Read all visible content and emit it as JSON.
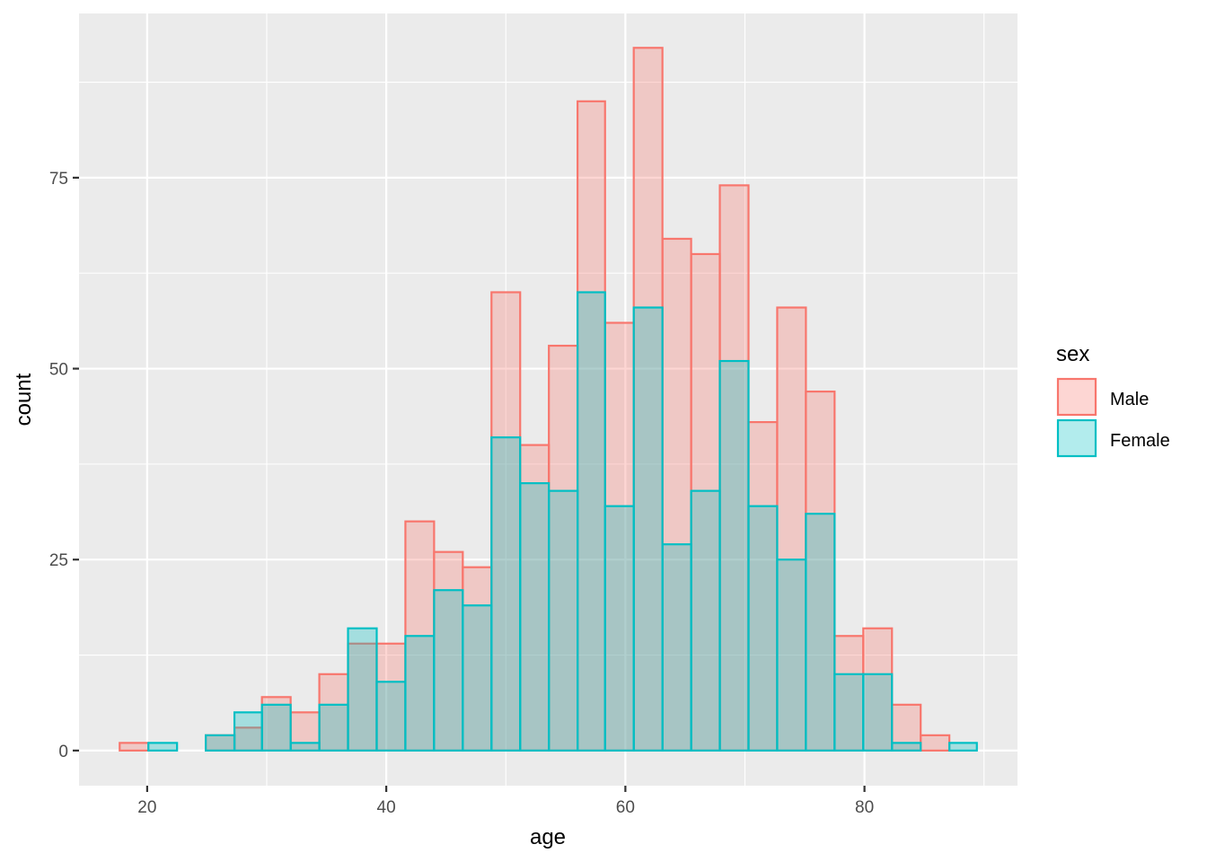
{
  "chart_data": {
    "type": "bar",
    "subtype": "overlapping-histogram",
    "xlabel": "age",
    "ylabel": "count",
    "xlim": [
      14.3,
      92.8
    ],
    "ylim": [
      -4.6,
      96.5
    ],
    "x_ticks": [
      20,
      40,
      60,
      80
    ],
    "y_ticks": [
      0,
      25,
      50,
      75
    ],
    "x_minor_ticks": [
      30,
      50,
      70,
      90
    ],
    "y_minor_ticks": [
      12.5,
      37.5,
      62.5,
      87.5
    ],
    "bin_edges": [
      17.7,
      20.1,
      22.5,
      24.9,
      27.3,
      29.6,
      32.0,
      34.4,
      36.8,
      39.2,
      41.6,
      44.0,
      46.4,
      48.8,
      51.2,
      53.6,
      56.0,
      58.3,
      60.7,
      63.1,
      65.5,
      67.9,
      70.3,
      72.7,
      75.1,
      77.5,
      79.9,
      82.3,
      84.7,
      87.1,
      89.4
    ],
    "grid": true,
    "legend": {
      "title": "sex",
      "position": "right"
    },
    "series": [
      {
        "name": "Male",
        "color": "#F8766D",
        "values": [
          1,
          0,
          0,
          2,
          3,
          7,
          5,
          10,
          14,
          14,
          30,
          26,
          24,
          60,
          40,
          53,
          85,
          56,
          92,
          67,
          65,
          74,
          43,
          58,
          47,
          15,
          16,
          6,
          2,
          0
        ]
      },
      {
        "name": "Female",
        "color": "#00BFC4",
        "values": [
          0,
          1,
          0,
          2,
          5,
          6,
          1,
          6,
          16,
          9,
          15,
          21,
          19,
          41,
          35,
          34,
          60,
          32,
          58,
          27,
          34,
          51,
          32,
          25,
          31,
          10,
          10,
          1,
          0,
          1
        ]
      }
    ]
  }
}
